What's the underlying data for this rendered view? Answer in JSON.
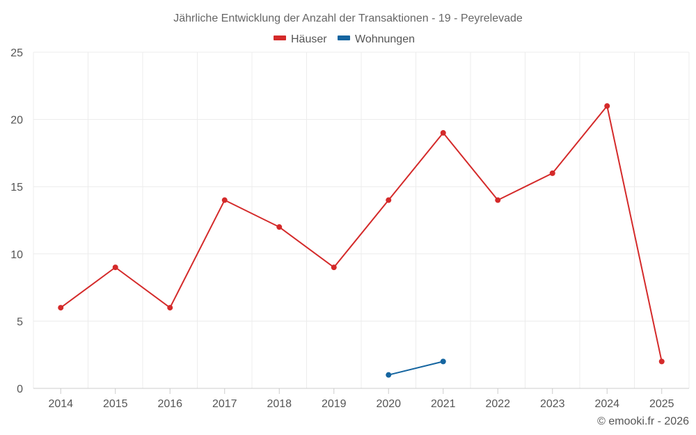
{
  "chart_data": {
    "type": "line",
    "title": "Jährliche Entwicklung der Anzahl der Transaktionen - 19 - Peyrelevade",
    "categories": [
      "2014",
      "2015",
      "2016",
      "2017",
      "2018",
      "2019",
      "2020",
      "2021",
      "2022",
      "2023",
      "2024",
      "2025"
    ],
    "ylim": [
      0,
      25
    ],
    "yticks": [
      0,
      5,
      10,
      15,
      20,
      25
    ],
    "grid": true,
    "legend_position": "top-center",
    "series": [
      {
        "name": "Häuser",
        "color": "#d42a2a",
        "values": [
          6,
          9,
          6,
          14,
          12,
          9,
          14,
          19,
          14,
          16,
          21,
          2
        ]
      },
      {
        "name": "Wohnungen",
        "color": "#1565a0",
        "values": [
          null,
          null,
          null,
          null,
          null,
          null,
          1,
          2,
          null,
          null,
          null,
          null
        ]
      }
    ],
    "credit": "© emooki.fr - 2026"
  }
}
